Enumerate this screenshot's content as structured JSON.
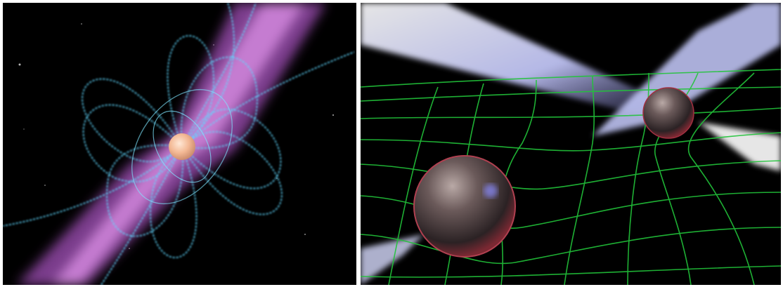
{
  "panels": [
    {
      "subject": "pulsar-magnetic-field",
      "colors": {
        "background": "#000000",
        "beam": "#e070ff",
        "field_lines": "#5fd8ff",
        "star": "#f4c4a6"
      }
    },
    {
      "subject": "binary-pulsar-spacetime-grid",
      "colors": {
        "background": "#000000",
        "grid": "#22c43a",
        "beam": "#d8dcff",
        "sphere": "#6b5a5a",
        "rim": "#c0404e"
      }
    }
  ]
}
